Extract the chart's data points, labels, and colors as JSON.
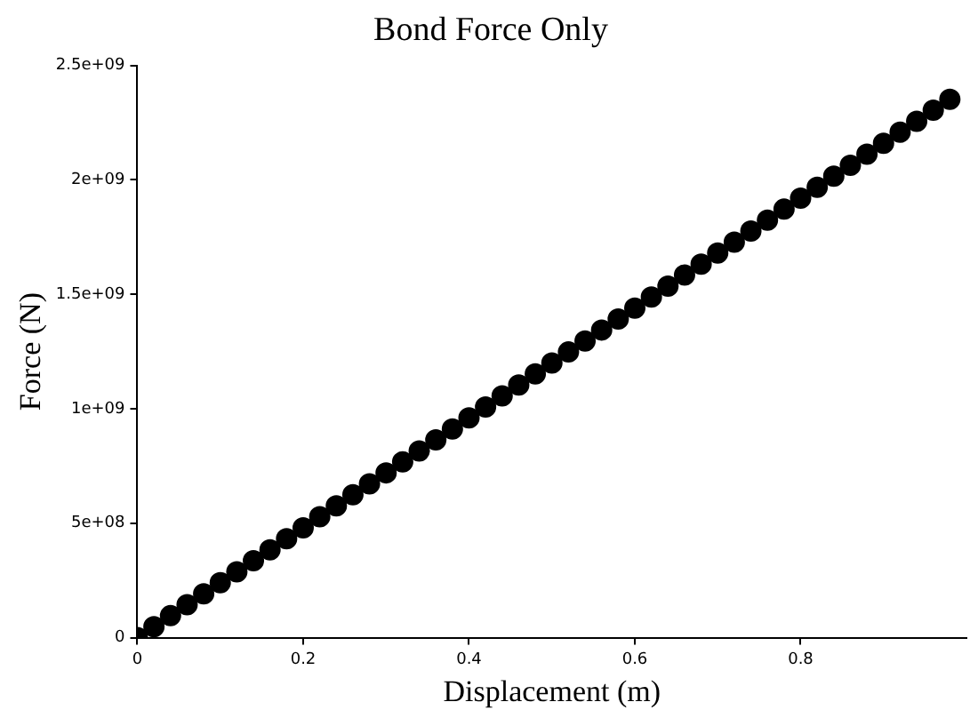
{
  "chart_data": {
    "type": "scatter",
    "title": "Bond Force Only",
    "xlabel": "Displacement (m)",
    "ylabel": "Force (N)",
    "x": [
      0,
      0.02,
      0.04,
      0.06,
      0.08,
      0.1,
      0.12,
      0.14,
      0.16,
      0.18,
      0.2,
      0.22,
      0.24,
      0.26,
      0.28,
      0.3,
      0.32,
      0.34,
      0.36,
      0.38,
      0.4,
      0.42,
      0.44,
      0.46,
      0.48,
      0.5,
      0.52,
      0.54,
      0.56,
      0.58,
      0.6,
      0.62,
      0.64,
      0.66,
      0.68,
      0.7,
      0.72,
      0.74,
      0.76,
      0.78,
      0.8,
      0.82,
      0.84,
      0.86,
      0.88,
      0.9,
      0.92,
      0.94,
      0.96,
      0.98
    ],
    "series": [
      {
        "color": "#000000",
        "values": [
          0,
          48000000,
          96000000,
          144000000,
          192000000,
          240000000,
          288000000,
          336000000,
          384000000,
          432000000,
          480000000,
          528000000,
          576000000,
          624000000,
          672000000,
          720000000,
          768000000,
          816000000,
          864000000,
          912000000,
          960000000,
          1008000000,
          1056000000,
          1104000000,
          1152000000,
          1200000000,
          1248000000,
          1296000000,
          1344000000,
          1392000000,
          1440000000,
          1488000000,
          1536000000,
          1584000000,
          1632000000,
          1680000000,
          1728000000,
          1776000000,
          1824000000,
          1872000000,
          1920000000,
          1968000000,
          2016000000,
          2064000000,
          2112000000,
          2160000000,
          2208000000,
          2256000000,
          2304000000,
          2352000000
        ]
      }
    ],
    "xlim": [
      0,
      1
    ],
    "xticks": [
      0,
      0.2,
      0.4,
      0.6,
      0.8
    ],
    "ylim": [
      0,
      2500000000
    ],
    "yticks": [
      0,
      {
        "value": 500000000,
        "label": "5e+08"
      },
      {
        "value": 1000000000,
        "label": "1e+09"
      },
      {
        "value": 1500000000,
        "label": "1.5e+09"
      },
      {
        "value": 2000000000,
        "label": "2e+09"
      },
      {
        "value": 2500000000,
        "label": "2.5e+09"
      }
    ],
    "grid": false,
    "legend": false,
    "marker": "circle"
  }
}
